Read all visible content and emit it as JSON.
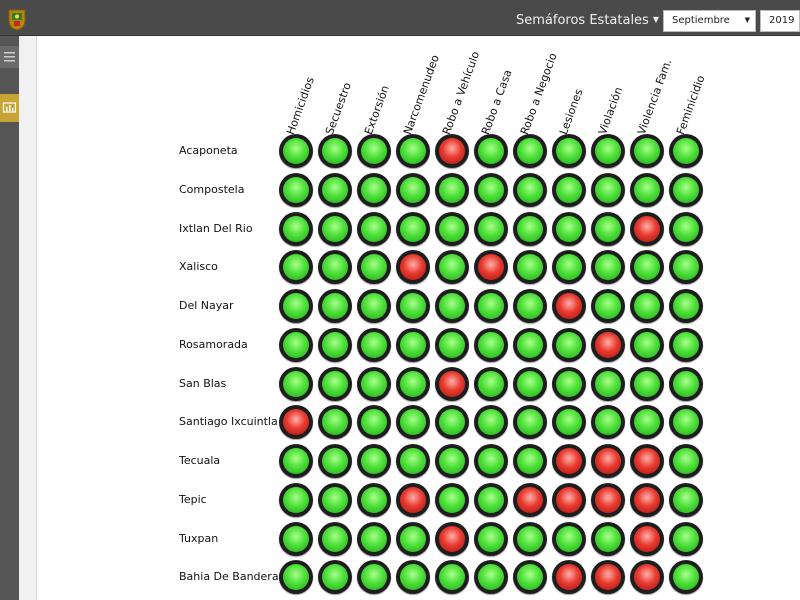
{
  "header": {
    "app_title": "Semáforos Estatales",
    "month_value": "Septiembre",
    "year_value": "2019"
  },
  "colors": {
    "topbar": "#4a4a4a",
    "active_side": "#c8a437",
    "green": "#3ecf2c",
    "red": "#d9302a"
  },
  "icons": {
    "logo": "state-seal-icon",
    "menu": "hamburger-icon",
    "chart": "chart-icon"
  },
  "columns": [
    "Homicidios",
    "Secuestro",
    "Extorsión",
    "Narcomenudeo",
    "Robo a Vehículo",
    "Robo a Casa",
    "Robo a Negocio",
    "Lesiones",
    "Violación",
    "Violencia Fam.",
    "Feminicidio"
  ],
  "rows": [
    {
      "name": "Acaponeta",
      "status": [
        "green",
        "green",
        "green",
        "green",
        "red",
        "green",
        "green",
        "green",
        "green",
        "green",
        "green"
      ]
    },
    {
      "name": "Compostela",
      "status": [
        "green",
        "green",
        "green",
        "green",
        "green",
        "green",
        "green",
        "green",
        "green",
        "green",
        "green"
      ]
    },
    {
      "name": "Ixtlan Del Rio",
      "status": [
        "green",
        "green",
        "green",
        "green",
        "green",
        "green",
        "green",
        "green",
        "green",
        "red",
        "green"
      ]
    },
    {
      "name": "Xalisco",
      "status": [
        "green",
        "green",
        "green",
        "red",
        "green",
        "red",
        "green",
        "green",
        "green",
        "green",
        "green"
      ]
    },
    {
      "name": "Del Nayar",
      "status": [
        "green",
        "green",
        "green",
        "green",
        "green",
        "green",
        "green",
        "red",
        "green",
        "green",
        "green"
      ]
    },
    {
      "name": "Rosamorada",
      "status": [
        "green",
        "green",
        "green",
        "green",
        "green",
        "green",
        "green",
        "green",
        "red",
        "green",
        "green"
      ]
    },
    {
      "name": "San Blas",
      "status": [
        "green",
        "green",
        "green",
        "green",
        "red",
        "green",
        "green",
        "green",
        "green",
        "green",
        "green"
      ]
    },
    {
      "name": "Santiago Ixcuintla",
      "status": [
        "red",
        "green",
        "green",
        "green",
        "green",
        "green",
        "green",
        "green",
        "green",
        "green",
        "green"
      ]
    },
    {
      "name": "Tecuala",
      "status": [
        "green",
        "green",
        "green",
        "green",
        "green",
        "green",
        "green",
        "red",
        "red",
        "red",
        "green"
      ]
    },
    {
      "name": "Tepic",
      "status": [
        "green",
        "green",
        "green",
        "red",
        "green",
        "green",
        "red",
        "red",
        "red",
        "red",
        "green"
      ]
    },
    {
      "name": "Tuxpan",
      "status": [
        "green",
        "green",
        "green",
        "green",
        "red",
        "green",
        "green",
        "green",
        "green",
        "red",
        "green"
      ]
    },
    {
      "name": "Bahia De Banderas",
      "status": [
        "green",
        "green",
        "green",
        "green",
        "green",
        "green",
        "green",
        "red",
        "red",
        "red",
        "green"
      ]
    }
  ]
}
